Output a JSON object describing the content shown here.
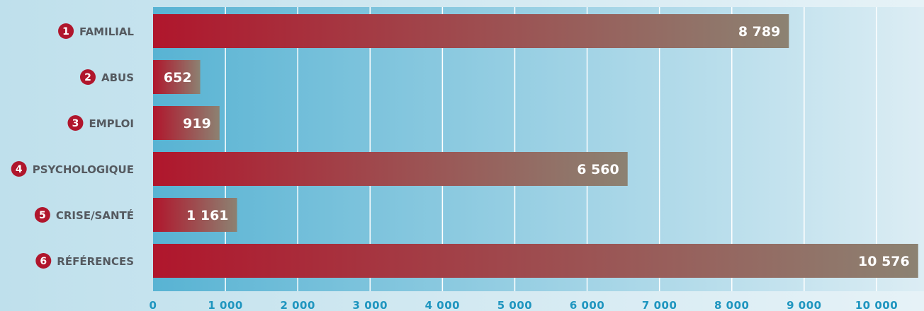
{
  "chart_data": {
    "type": "bar",
    "orientation": "horizontal",
    "title": "",
    "xlabel": "",
    "ylabel": "",
    "categories": [
      {
        "rank": "1",
        "label": "FAMILIAL"
      },
      {
        "rank": "2",
        "label": "ABUS"
      },
      {
        "rank": "3",
        "label": "EMPLOI"
      },
      {
        "rank": "4",
        "label": "PSYCHOLOGIQUE"
      },
      {
        "rank": "5",
        "label": "CRISE/SANTÉ"
      },
      {
        "rank": "6",
        "label": "RÉFÉRENCES"
      }
    ],
    "values": [
      8789,
      652,
      919,
      6560,
      1161,
      10576
    ],
    "value_labels": [
      "8 789",
      "652",
      "919",
      "6 560",
      "1 161",
      "10 576"
    ],
    "xlim": [
      0,
      10500
    ],
    "x_ticks": [
      0,
      1000,
      2000,
      3000,
      4000,
      5000,
      6000,
      7000,
      8000,
      9000,
      10000
    ],
    "x_tick_labels": [
      "0",
      "1 000",
      "2 000",
      "3 000",
      "4 000",
      "5 000",
      "6 000",
      "7 000",
      "8 000",
      "9 000",
      "10 000"
    ],
    "grid": true,
    "legend": "none"
  },
  "colors": {
    "bar_start": "#b0162c",
    "bar_end": "#8c8272",
    "badge": "#b0162c",
    "category_text": "#555a60",
    "tick_text": "#1e95bf",
    "plot_bg_left": "#58b3d3",
    "plot_bg_right": "#dcedf4",
    "page_bg": "#c9e5ef",
    "gridline": "#ffffff"
  }
}
